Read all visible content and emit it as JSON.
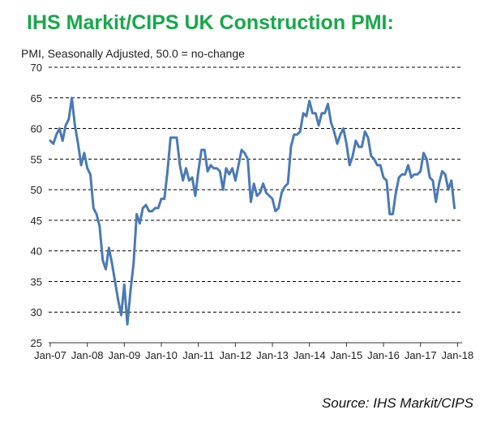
{
  "title": "IHS Markit/CIPS UK Construction PMI:",
  "subtitle": "PMI, Seasonally Adjusted, 50.0 = no-change",
  "source": "Source: IHS Markit/CIPS",
  "colors": {
    "title": "#17a84a",
    "line": "#4a7ab5",
    "grid": "#000000"
  },
  "chart_data": {
    "type": "line",
    "title": "IHS Markit/CIPS UK Construction PMI:",
    "ylabel": "PMI, Seasonally Adjusted, 50.0 = no-change",
    "xlabel": "",
    "ylim": [
      25,
      70
    ],
    "yticks": [
      25,
      30,
      35,
      40,
      45,
      50,
      55,
      60,
      65,
      70
    ],
    "xtick_labels": [
      "Jan-07",
      "Jan-08",
      "Jan-09",
      "Jan-10",
      "Jan-11",
      "Jan-12",
      "Jan-13",
      "Jan-14",
      "Jan-15",
      "Jan-16",
      "Jan-17",
      "Jan-18"
    ],
    "grid": "horizontal dashed",
    "legend": "none",
    "series": [
      {
        "name": "",
        "start": "Jan-07",
        "frequency": "monthly",
        "values": [
          58.0,
          57.5,
          59.0,
          60.0,
          58.0,
          60.5,
          61.5,
          65.0,
          60.5,
          57.5,
          54.0,
          56.0,
          53.5,
          52.5,
          47.0,
          46.0,
          44.0,
          38.5,
          37.0,
          40.5,
          38.0,
          35.0,
          32.0,
          29.5,
          34.5,
          28.0,
          33.5,
          38.0,
          46.0,
          44.5,
          47.0,
          47.5,
          46.5,
          46.5,
          47.0,
          47.0,
          48.5,
          48.5,
          53.0,
          58.5,
          58.5,
          58.5,
          54.0,
          51.5,
          53.5,
          51.5,
          52.0,
          49.0,
          53.0,
          56.5,
          56.5,
          53.0,
          54.0,
          53.5,
          53.5,
          53.0,
          50.0,
          53.5,
          52.5,
          53.5,
          51.5,
          54.0,
          56.5,
          56.0,
          55.0,
          48.0,
          51.0,
          49.0,
          49.5,
          51.0,
          49.5,
          49.0,
          48.5,
          46.5,
          47.0,
          49.5,
          50.5,
          51.0,
          57.0,
          59.0,
          59.0,
          59.5,
          62.5,
          62.0,
          64.5,
          62.5,
          62.5,
          60.5,
          62.5,
          62.5,
          64.0,
          61.0,
          59.5,
          57.5,
          59.0,
          60.0,
          57.5,
          54.0,
          55.5,
          58.0,
          57.0,
          57.0,
          59.5,
          58.5,
          55.5,
          55.0,
          54.0,
          54.0,
          52.0,
          51.5,
          46.0,
          46.0,
          49.5,
          52.0,
          52.5,
          52.5,
          54.0,
          52.0,
          52.5,
          52.5,
          53.0,
          56.0,
          55.0,
          52.0,
          51.5,
          48.0,
          51.0,
          53.0,
          52.5,
          50.0,
          51.5,
          47.0
        ]
      }
    ]
  }
}
